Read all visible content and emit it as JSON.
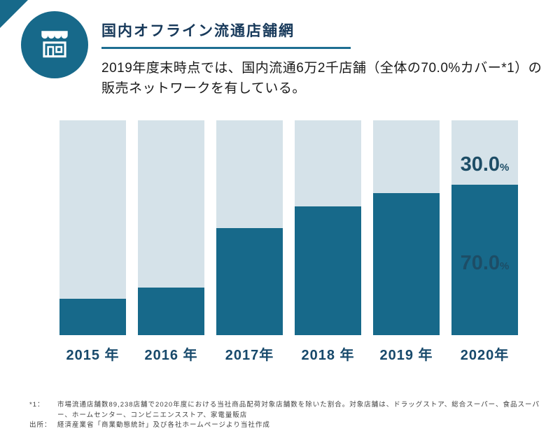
{
  "header": {
    "title": "国内オフライン流通店舗網",
    "description": "2019年度末時点では、国内流通6万2千店舗（全体の70.0%カバー*1）の販売ネットワークを有している。"
  },
  "icon": "storefront-icon",
  "colors": {
    "accent_teal": "#17698A",
    "title_navy": "#17395A",
    "label_navy": "#17496B"
  },
  "chart_data": {
    "type": "bar",
    "stacked": true,
    "categories": [
      "2015 年",
      "2016 年",
      "2017年",
      "2018 年",
      "2019 年",
      "2020年"
    ],
    "series": [
      {
        "name": "covered",
        "values": [
          17,
          22,
          50,
          60,
          66,
          70
        ]
      },
      {
        "name": "remaining",
        "values": [
          83,
          78,
          50,
          40,
          34,
          30
        ]
      }
    ],
    "annotations": [
      {
        "position": "top",
        "label": "30.0",
        "unit": "%",
        "value": 30.0
      },
      {
        "position": "bottom",
        "label": "70.0",
        "unit": "%",
        "value": 70.0
      }
    ],
    "ylim": [
      0,
      100
    ],
    "grid": false,
    "legend": false,
    "colors": {
      "fill": "#17698A",
      "track": "#D5E2E9"
    }
  },
  "footnotes": [
    {
      "marker": "*1：",
      "text": "市場流通店舗数89,238店舗で2020年度における当社商品配荷対象店舗数を除いた割合。対象店舗は、ドラッグストア、総合スーパー、食品スーパー、ホームセンター、コンビニエンスストア、家電量販店"
    },
    {
      "marker": "出所：",
      "text": "経済産業省「商業動態統計」及び各社ホームページより当社作成"
    }
  ]
}
